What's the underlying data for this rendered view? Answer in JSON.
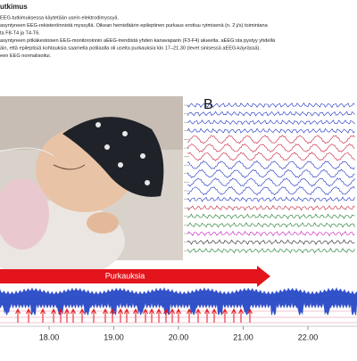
{
  "header": {
    "title": "utkimus"
  },
  "paragraphs": [
    "EEG-tutkimuksessa käytetään usein elektrodimyssyä.",
    "asyntyneen EEG-rekisteröinnistä myssyllä. Oikean hemisfäärin epileptinen purkaus erottuu rytmisenä (n. 2 j/s) toimintana",
    "ta F8-T4 ja T4-T6.",
    "asyntyneen pitkäkestoisen EEG-monitoroinnin aEEG-trendistä yhden kanavaparin (F3-F4) alueelta. aEEG:sta pystyy yhdellä",
    "äin, että epileptisiä kohtauksia saamella potilaalla oli useita purkauksia klo 17–21.30 (levet sinisessä aEEG-käyrässä).",
    "een EEG normalisoitui."
  ],
  "panel_label": "B",
  "banner": "Purkauksia",
  "axis": {
    "labels": [
      "18.00",
      "19.00",
      "20.00",
      "21.00",
      "22.00"
    ]
  }
}
